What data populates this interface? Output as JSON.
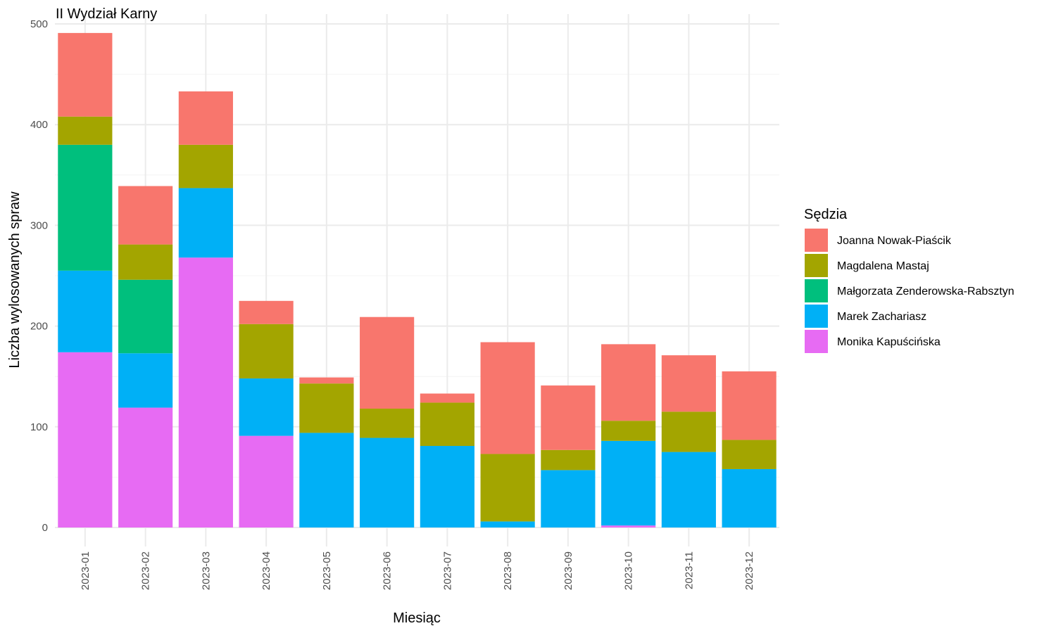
{
  "chart_data": {
    "type": "bar",
    "stacked": true,
    "title": "II Wydział Karny",
    "xlabel": "Miesiąc",
    "ylabel": "Liczba wylosowanych spraw",
    "ylim": [
      0,
      500
    ],
    "yticks": [
      0,
      100,
      200,
      300,
      400,
      500
    ],
    "grid": true,
    "legend_title": "Sędzia",
    "legend_position": "right",
    "categories": [
      "2023-01",
      "2023-02",
      "2023-03",
      "2023-04",
      "2023-05",
      "2023-06",
      "2023-07",
      "2023-08",
      "2023-09",
      "2023-10",
      "2023-11",
      "2023-12"
    ],
    "stack_order_bottom_to_top": [
      "Monika Kapuścińska",
      "Marek Zachariasz",
      "Małgorzata Zenderowska-Rabsztyn",
      "Magdalena Mastaj",
      "Joanna Nowak-Piaścik"
    ],
    "series": [
      {
        "name": "Joanna Nowak-Piaścik",
        "color": "#F8766D",
        "values": [
          83,
          58,
          53,
          23,
          6,
          91,
          9,
          111,
          64,
          76,
          56,
          68
        ]
      },
      {
        "name": "Magdalena Mastaj",
        "color": "#A3A500",
        "values": [
          28,
          35,
          43,
          54,
          49,
          29,
          43,
          67,
          20,
          20,
          40,
          29
        ]
      },
      {
        "name": "Małgorzata Zenderowska-Rabsztyn",
        "color": "#00BF7D",
        "values": [
          125,
          73,
          0,
          0,
          0,
          0,
          0,
          0,
          0,
          0,
          0,
          0
        ]
      },
      {
        "name": "Marek Zachariasz",
        "color": "#00B0F6",
        "values": [
          81,
          54,
          69,
          57,
          94,
          89,
          81,
          6,
          57,
          84,
          75,
          58
        ]
      },
      {
        "name": "Monika Kapuścińska",
        "color": "#E76BF3",
        "values": [
          174,
          119,
          268,
          91,
          0,
          0,
          0,
          0,
          0,
          2,
          0,
          0
        ]
      }
    ]
  }
}
